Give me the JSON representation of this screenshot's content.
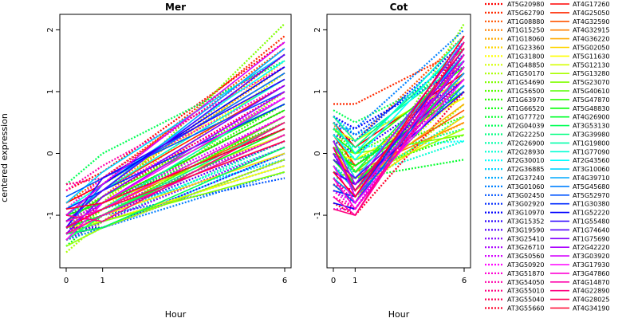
{
  "chart_data": {
    "type": "line",
    "ylabel": "centered expression",
    "legend_placement": "right",
    "grid": false,
    "palette": [
      "#ff0000",
      "#ff2a00",
      "#ff5500",
      "#ff8000",
      "#ffaa00",
      "#ffd500",
      "#ffff00",
      "#d4ff00",
      "#aaff00",
      "#80ff00",
      "#55ff00",
      "#2aff00",
      "#00ff00",
      "#00ff2a",
      "#00ff55",
      "#00ff80",
      "#00ffaa",
      "#00ffd4",
      "#00ffff",
      "#00d4ff",
      "#00aaff",
      "#0080ff",
      "#0055ff",
      "#002aff",
      "#0000ff",
      "#2a00ff",
      "#5500ff",
      "#8000ff",
      "#aa00ff",
      "#d400ff",
      "#ff00ff",
      "#ff00d4",
      "#ff00aa",
      "#ff0080",
      "#ff0055",
      "#ff002a"
    ],
    "line_styles": [
      "dotted",
      "solid",
      "dashed"
    ],
    "panels": [
      {
        "title": "Mer",
        "xlabel": "Hour",
        "x": [
          "0",
          "1",
          "6"
        ],
        "ylim": [
          -1.85,
          2.25
        ],
        "yticks": [
          -1,
          0,
          1,
          2
        ],
        "series_values": [
          [
            -0.6,
            -0.3,
            1.8
          ],
          [
            -1.0,
            -0.5,
            1.9
          ],
          [
            -0.8,
            -0.4,
            1.7
          ],
          [
            -1.2,
            -0.7,
            1.6
          ],
          [
            -1.1,
            -0.6,
            1.4
          ],
          [
            -1.3,
            -0.8,
            1.5
          ],
          [
            -0.9,
            -0.5,
            1.2
          ],
          [
            -1.4,
            -0.9,
            1.3
          ],
          [
            -1.6,
            -1.1,
            1.0
          ],
          [
            -1.2,
            -0.8,
            2.1
          ],
          [
            -1.0,
            -0.7,
            0.9
          ],
          [
            -1.3,
            -0.9,
            0.8
          ],
          [
            -1.5,
            -1.0,
            0.6
          ],
          [
            -1.1,
            -0.8,
            0.5
          ],
          [
            -0.5,
            0.0,
            1.5
          ],
          [
            -1.2,
            -1.0,
            0.3
          ],
          [
            -1.4,
            -1.1,
            0.2
          ],
          [
            -1.3,
            -1.0,
            0.1
          ],
          [
            -1.5,
            -1.2,
            0.0
          ],
          [
            -1.1,
            -0.9,
            -0.1
          ],
          [
            -1.3,
            -1.1,
            -0.2
          ],
          [
            -1.4,
            -1.2,
            -0.3
          ],
          [
            -1.2,
            -1.0,
            -0.4
          ],
          [
            -1.0,
            -0.8,
            0.4
          ],
          [
            -1.3,
            -1.2,
            -0.1
          ],
          [
            -1.2,
            -1.2,
            0.0
          ],
          [
            -1.3,
            -1.0,
            0.2
          ],
          [
            -1.4,
            -1.1,
            0.1
          ],
          [
            -1.2,
            -0.9,
            0.3
          ],
          [
            -1.1,
            -0.8,
            0.6
          ],
          [
            -1.0,
            -0.6,
            0.9
          ],
          [
            -0.9,
            -0.4,
            1.1
          ],
          [
            -0.6,
            -0.2,
            1.4
          ],
          [
            -0.5,
            -0.4,
            1.6
          ],
          [
            -1.1,
            -0.7,
            1.0
          ],
          [
            -1.3,
            -0.8,
            0.7
          ],
          [
            -0.8,
            -0.5,
            1.3
          ],
          [
            -1.0,
            -0.6,
            1.1
          ],
          [
            -1.2,
            -0.9,
            0.5
          ],
          [
            -1.3,
            -1.0,
            0.4
          ],
          [
            -1.1,
            -0.9,
            0.2
          ],
          [
            -1.4,
            -1.0,
            0.0
          ],
          [
            -1.2,
            -1.1,
            -0.2
          ],
          [
            -1.0,
            -0.8,
            0.3
          ],
          [
            -1.5,
            -1.2,
            -0.1
          ],
          [
            -1.3,
            -1.1,
            -0.3
          ],
          [
            -1.2,
            -1.0,
            0.6
          ],
          [
            -1.1,
            -0.7,
            0.8
          ],
          [
            -1.0,
            -0.8,
            0.7
          ],
          [
            -1.2,
            -1.0,
            0.4
          ],
          [
            -1.3,
            -1.2,
            0.1
          ],
          [
            -1.4,
            -1.0,
            0.5
          ],
          [
            -1.1,
            -0.9,
            0.9
          ],
          [
            -1.0,
            -0.6,
            1.2
          ],
          [
            -0.9,
            -0.5,
            1.5
          ],
          [
            -0.8,
            -0.3,
            1.6
          ],
          [
            -1.1,
            -0.6,
            1.7
          ],
          [
            -1.2,
            -0.5,
            1.3
          ],
          [
            -0.7,
            -0.4,
            1.0
          ],
          [
            -0.9,
            -0.6,
            0.8
          ],
          [
            -1.0,
            -0.5,
            1.4
          ],
          [
            -1.2,
            -0.4,
            1.2
          ],
          [
            -1.1,
            -0.6,
            1.6
          ],
          [
            -1.3,
            -0.7,
            1.1
          ],
          [
            -1.2,
            -0.8,
            1.0
          ],
          [
            -1.0,
            -0.5,
            1.8
          ],
          [
            -1.4,
            -0.8,
            0.9
          ],
          [
            -1.1,
            -0.9,
            0.6
          ],
          [
            -1.3,
            -1.0,
            0.3
          ],
          [
            -1.0,
            -1.1,
            0.5
          ],
          [
            -1.2,
            -0.9,
            0.2
          ],
          [
            -0.9,
            -0.8,
            0.4
          ]
        ]
      },
      {
        "title": "Cot",
        "xlabel": "Hour",
        "x": [
          "0",
          "1",
          "6"
        ],
        "ylim": [
          -1.85,
          2.25
        ],
        "yticks": [
          -1,
          0,
          1,
          2
        ],
        "series_values": [
          [
            -0.5,
            -0.8,
            1.8
          ],
          [
            0.8,
            0.8,
            1.7
          ],
          [
            0.6,
            0.2,
            1.9
          ],
          [
            0.5,
            -0.3,
            1.5
          ],
          [
            0.3,
            -0.2,
            1.2
          ],
          [
            0.2,
            -0.4,
            0.5
          ],
          [
            0.0,
            -0.5,
            1.3
          ],
          [
            -0.2,
            -0.6,
            1.0
          ],
          [
            -0.4,
            -0.7,
            0.8
          ],
          [
            -0.5,
            -0.8,
            2.1
          ],
          [
            0.4,
            0.0,
            0.9
          ],
          [
            0.1,
            -0.1,
            0.6
          ],
          [
            -0.1,
            -0.3,
            0.3
          ],
          [
            -0.3,
            -0.4,
            -0.1
          ],
          [
            0.7,
            0.5,
            1.4
          ],
          [
            0.3,
            -0.1,
            0.4
          ],
          [
            -0.2,
            -0.5,
            0.6
          ],
          [
            -0.4,
            -0.4,
            0.2
          ],
          [
            0.2,
            0.1,
            0.2
          ],
          [
            0.6,
            0.3,
            1.0
          ],
          [
            0.1,
            -0.2,
            1.1
          ],
          [
            0.4,
            0.4,
            2.0
          ],
          [
            0.5,
            0.3,
            1.6
          ],
          [
            0.3,
            0.2,
            1.8
          ],
          [
            0.6,
            0.4,
            1.4
          ],
          [
            0.2,
            0.0,
            1.2
          ],
          [
            0.0,
            -0.6,
            1.5
          ],
          [
            -0.3,
            -0.5,
            1.1
          ],
          [
            -0.6,
            -0.8,
            1.6
          ],
          [
            -0.9,
            -0.9,
            1.7
          ],
          [
            0.1,
            -0.7,
            1.3
          ],
          [
            -0.6,
            -0.9,
            1.5
          ],
          [
            -0.4,
            -0.8,
            1.9
          ],
          [
            -0.7,
            -0.9,
            1.4
          ],
          [
            -0.5,
            -0.6,
            1.2
          ],
          [
            -0.8,
            -1.0,
            1.0
          ],
          [
            0.5,
            0.1,
            1.3
          ],
          [
            0.3,
            -0.2,
            1.0
          ],
          [
            -0.1,
            -0.4,
            0.7
          ],
          [
            0.2,
            -0.3,
            0.5
          ],
          [
            0.1,
            -0.5,
            0.8
          ],
          [
            -0.2,
            -0.6,
            0.6
          ],
          [
            0.0,
            -0.1,
            0.9
          ],
          [
            0.4,
            0.2,
            1.2
          ],
          [
            -0.3,
            -0.4,
            0.4
          ],
          [
            0.1,
            0.0,
            0.3
          ],
          [
            0.2,
            -0.3,
            1.1
          ],
          [
            0.3,
            0.0,
            1.4
          ],
          [
            0.0,
            -0.2,
            1.0
          ],
          [
            -0.1,
            -0.5,
            1.3
          ],
          [
            0.1,
            -0.3,
            1.6
          ],
          [
            0.4,
            0.1,
            1.7
          ],
          [
            0.6,
            0.2,
            1.5
          ],
          [
            0.5,
            0.0,
            1.9
          ],
          [
            0.3,
            -0.1,
            1.8
          ],
          [
            0.2,
            -0.4,
            1.6
          ],
          [
            -0.2,
            -0.6,
            1.3
          ],
          [
            -0.4,
            -0.7,
            1.1
          ],
          [
            -0.5,
            -0.8,
            1.5
          ],
          [
            -0.6,
            -0.7,
            1.7
          ],
          [
            -0.8,
            -0.9,
            1.4
          ],
          [
            -0.3,
            -0.5,
            1.0
          ],
          [
            -0.1,
            -0.4,
            1.2
          ],
          [
            0.0,
            -0.6,
            1.6
          ],
          [
            0.2,
            -0.5,
            1.8
          ],
          [
            0.1,
            -0.7,
            1.5
          ],
          [
            -0.2,
            -0.8,
            1.2
          ],
          [
            -0.4,
            -0.9,
            1.4
          ],
          [
            -0.7,
            -1.0,
            1.6
          ],
          [
            -0.9,
            -1.0,
            1.8
          ],
          [
            0.1,
            -0.6,
            1.7
          ],
          [
            -0.3,
            -0.7,
            1.9
          ]
        ]
      }
    ],
    "legend": [
      "AT5G20980",
      "AT5G62790",
      "AT1G08880",
      "AT1G15250",
      "AT1G18060",
      "AT1G23360",
      "AT1G31800",
      "AT1G48850",
      "AT1G50170",
      "AT1G54690",
      "AT1G56500",
      "AT1G63970",
      "AT1G66520",
      "AT1G77720",
      "AT2G04039",
      "AT2G22250",
      "AT2G26900",
      "AT2G28930",
      "AT2G30010",
      "AT2G36885",
      "AT2G37240",
      "AT3G01060",
      "AT3G02450",
      "AT3G02920",
      "AT3G10970",
      "AT3G15352",
      "AT3G19590",
      "AT3G25410",
      "AT3G26710",
      "AT3G50560",
      "AT3G50920",
      "AT3G51870",
      "AT3G54050",
      "AT3G55010",
      "AT3G55040",
      "AT3G55660",
      "AT4G17260",
      "AT4G25050",
      "AT4G32590",
      "AT4G32915",
      "AT4G36220",
      "AT5G02050",
      "AT5G11630",
      "AT5G12130",
      "AT5G13280",
      "AT5G23070",
      "AT5G40610",
      "AT5G47870",
      "AT5G48830",
      "AT4G26900",
      "AT3G53130",
      "AT3G39980",
      "AT1G19800",
      "AT1G77090",
      "AT2G43560",
      "AT3G10060",
      "AT4G39710",
      "AT5G45680",
      "AT5G52970",
      "AT1G30380",
      "AT1G52220",
      "AT1G55480",
      "AT1G74640",
      "AT1G75690",
      "AT2G42220",
      "AT3G03920",
      "AT3G17930",
      "AT3G47860",
      "AT4G14870",
      "AT4G22890",
      "AT4G28025",
      "AT4G34190"
    ]
  }
}
